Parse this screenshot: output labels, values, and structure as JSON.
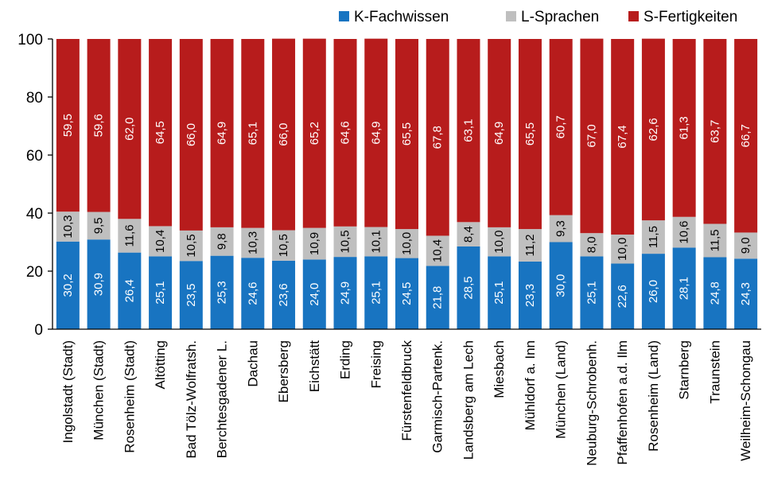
{
  "chart_data": {
    "type": "bar",
    "stacked": true,
    "title": "",
    "xlabel": "",
    "ylabel": "",
    "ylim": [
      0,
      100
    ],
    "yticks": [
      0,
      20,
      40,
      60,
      80,
      100
    ],
    "ytick_labels": [
      "0",
      "20",
      "40",
      "60",
      "80",
      "100"
    ],
    "grid": false,
    "legend_position": "top-right",
    "categories": [
      "Ingolstadt (Stadt)",
      "München (Stadt)",
      "Rosenheim (Stadt)",
      "Altötting",
      "Bad Tölz-Wolfratsh.",
      "Berchtesgadener L.",
      "Dachau",
      "Ebersberg",
      "Eichstätt",
      "Erding",
      "Freising",
      "Fürstenfeldbruck",
      "Garmisch-Partenk.",
      "Landsberg am Lech",
      "Miesbach",
      "Mühldorf a. Inn",
      "München (Land)",
      "Neuburg-Schrobenh.",
      "Pfaffenhofen a.d. Ilm",
      "Rosenheim (Land)",
      "Starnberg",
      "Traunstein",
      "Weilheim-Schongau"
    ],
    "series": [
      {
        "name": "K-Fachwissen",
        "color": "#1874c1",
        "values": [
          30.2,
          30.9,
          26.4,
          25.1,
          23.5,
          25.3,
          24.6,
          23.6,
          24.0,
          24.9,
          25.1,
          24.5,
          21.8,
          28.5,
          25.1,
          23.3,
          30.0,
          25.1,
          22.6,
          26.0,
          28.1,
          24.8,
          24.3
        ],
        "labels": [
          "30,2",
          "30,9",
          "26,4",
          "25,1",
          "23,5",
          "25,3",
          "24,6",
          "23,6",
          "24,0",
          "24,9",
          "25,1",
          "24,5",
          "21,8",
          "28,5",
          "25,1",
          "23,3",
          "30,0",
          "25,1",
          "22,6",
          "26,0",
          "28,1",
          "24,8",
          "24,3"
        ]
      },
      {
        "name": "L-Sprachen",
        "color": "#bfbfbf",
        "values": [
          10.3,
          9.5,
          11.6,
          10.4,
          10.5,
          9.8,
          10.3,
          10.5,
          10.9,
          10.5,
          10.1,
          10.0,
          10.4,
          8.4,
          10.0,
          11.2,
          9.3,
          8.0,
          10.0,
          11.5,
          10.6,
          11.5,
          9.0
        ],
        "labels": [
          "10,3",
          "9,5",
          "11,6",
          "10,4",
          "10,5",
          "9,8",
          "10,3",
          "10,5",
          "10,9",
          "10,5",
          "10,1",
          "10,0",
          "10,4",
          "8,4",
          "10,0",
          "11,2",
          "9,3",
          "8,0",
          "10,0",
          "11,5",
          "10,6",
          "11,5",
          "9,0"
        ]
      },
      {
        "name": "S-Fertigkeiten",
        "color": "#b71c1c",
        "values": [
          59.5,
          59.6,
          62.0,
          64.5,
          66.0,
          64.9,
          65.1,
          66.0,
          65.2,
          64.6,
          64.9,
          65.5,
          67.8,
          63.1,
          64.9,
          65.5,
          60.7,
          67.0,
          67.4,
          62.6,
          61.3,
          63.7,
          66.7
        ],
        "labels": [
          "59,5",
          "59,6",
          "62,0",
          "64,5",
          "66,0",
          "64,9",
          "65,1",
          "66,0",
          "65,2",
          "64,6",
          "64,9",
          "65,5",
          "67,8",
          "63,1",
          "64,9",
          "65,5",
          "60,7",
          "67,0",
          "67,4",
          "62,6",
          "61,3",
          "63,7",
          "66,7"
        ]
      }
    ]
  }
}
